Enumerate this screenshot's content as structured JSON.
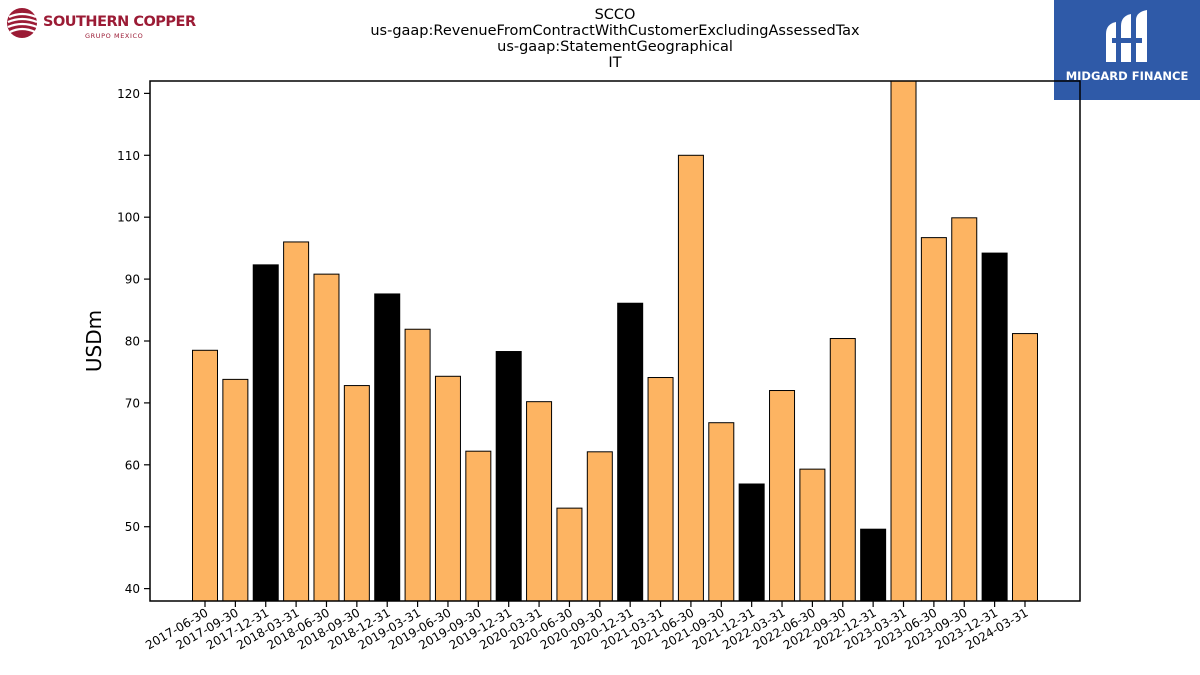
{
  "header": {
    "left_logo": {
      "name": "SOUTHERN COPPER",
      "sub": "GRUPO MEXICO"
    },
    "right_logo": {
      "name": "MIDGARD FINANCE"
    }
  },
  "colors": {
    "bar_default": "#fdb462",
    "bar_highlight": "#000000",
    "bar_edge": "#000000",
    "brand_left": "#9b1b35",
    "brand_right_bg": "#2f5aa8"
  },
  "chart_data": {
    "type": "bar",
    "title_lines": [
      "SCCO",
      "us-gaap:RevenueFromContractWithCustomerExcludingAssessedTax",
      "us-gaap:StatementGeographical",
      "IT"
    ],
    "ylabel": "USDm",
    "xlabel": "",
    "ylim": [
      38,
      122
    ],
    "yticks": [
      40,
      50,
      60,
      70,
      80,
      90,
      100,
      110,
      120
    ],
    "grid": false,
    "categories": [
      "2017-06-30",
      "2017-09-30",
      "2017-12-31",
      "2018-03-31",
      "2018-06-30",
      "2018-09-30",
      "2018-12-31",
      "2019-03-31",
      "2019-06-30",
      "2019-09-30",
      "2019-12-31",
      "2020-03-31",
      "2020-06-30",
      "2020-09-30",
      "2020-12-31",
      "2021-03-31",
      "2021-06-30",
      "2021-09-30",
      "2021-12-31",
      "2022-03-31",
      "2022-06-30",
      "2022-09-30",
      "2022-12-31",
      "2023-03-31",
      "2023-06-30",
      "2023-09-30",
      "2023-12-31",
      "2024-03-31"
    ],
    "values": [
      78.5,
      73.8,
      92.3,
      96.0,
      90.8,
      72.8,
      87.6,
      81.9,
      74.3,
      62.2,
      78.3,
      70.2,
      53.0,
      62.1,
      86.1,
      74.1,
      110.0,
      66.8,
      56.9,
      72.0,
      59.3,
      80.4,
      49.6,
      122.0,
      96.7,
      99.9,
      94.2,
      81.2
    ],
    "highlight": [
      false,
      false,
      true,
      false,
      false,
      false,
      true,
      false,
      false,
      false,
      true,
      false,
      false,
      false,
      true,
      false,
      false,
      false,
      true,
      false,
      false,
      false,
      true,
      false,
      false,
      false,
      true,
      false
    ]
  }
}
